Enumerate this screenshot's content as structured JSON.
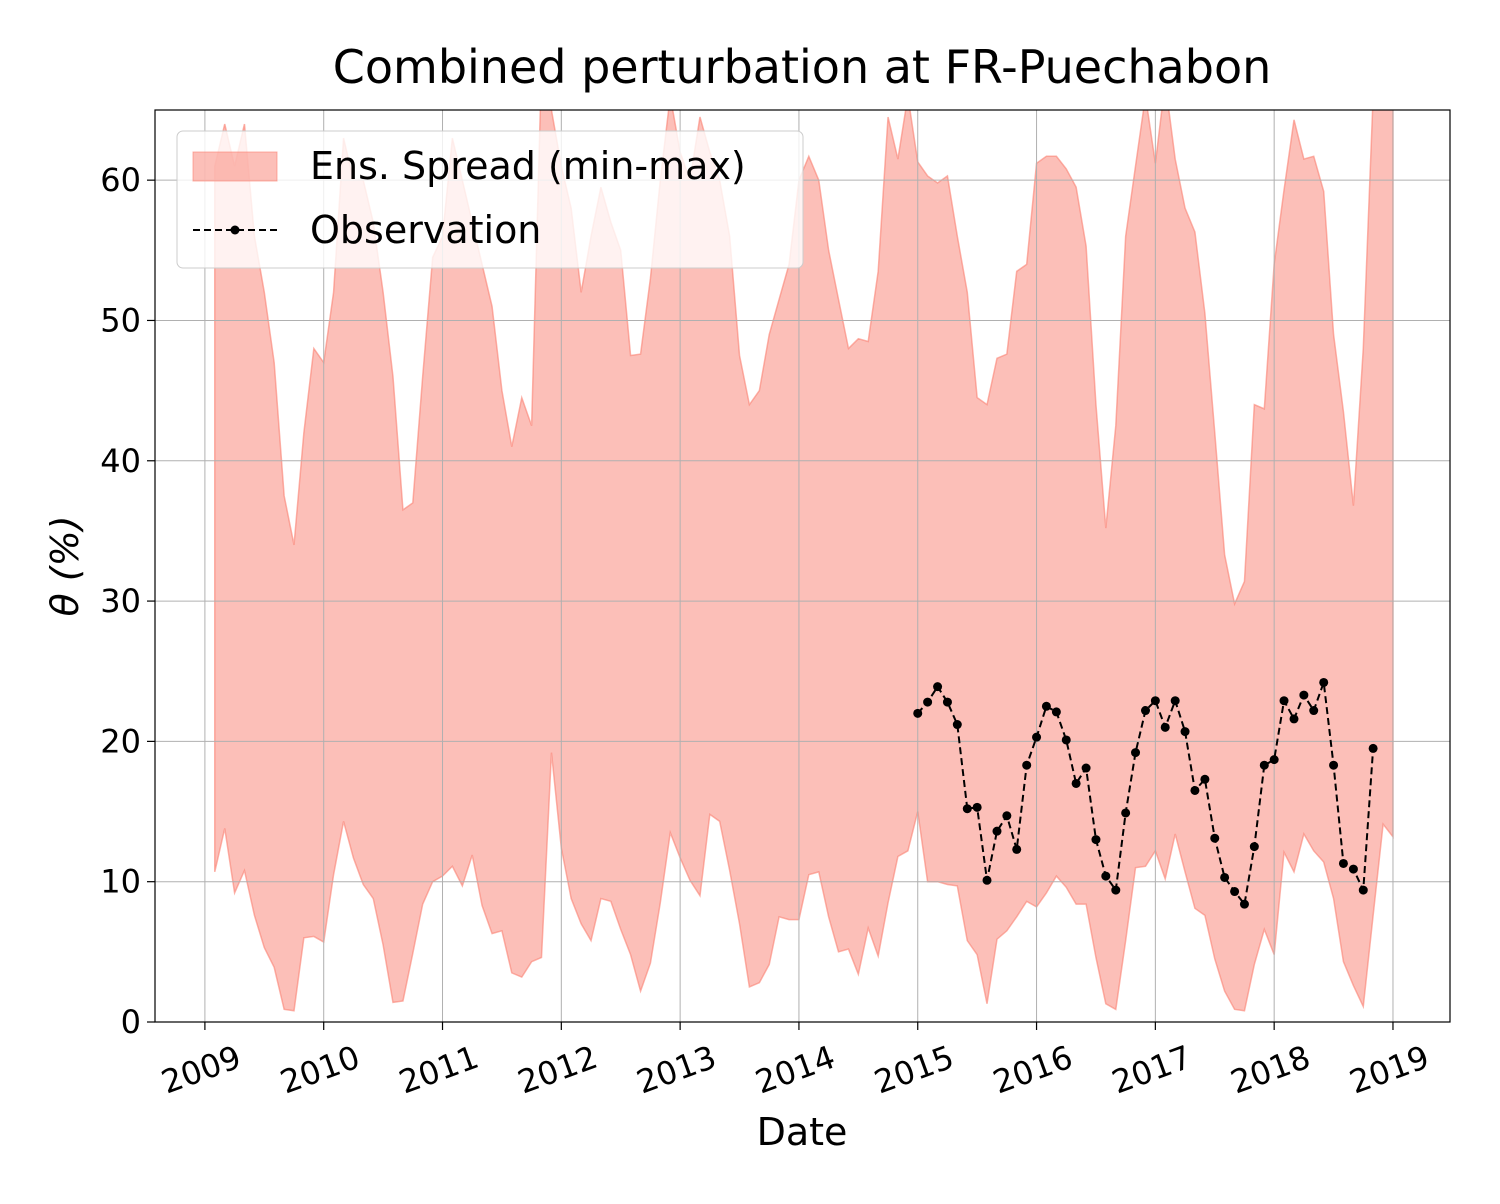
{
  "chart_data": {
    "type": "band-line",
    "title": "Combined perturbation at FR-Puechabon",
    "x_label": "Date",
    "y_label": "θ  (%)",
    "xlim": [
      2008.58,
      2019.48
    ],
    "ylim": [
      0,
      65
    ],
    "xticks": [
      2009,
      2010,
      2011,
      2012,
      2013,
      2014,
      2015,
      2016,
      2017,
      2018,
      2019
    ],
    "yticks": [
      0,
      10,
      20,
      30,
      40,
      50,
      60
    ],
    "grid": true,
    "legend": "upper left",
    "series": [
      {
        "name": "Ens. Spread (min-max)",
        "color": "#fa8072",
        "x": [
          2009.083,
          2009.167,
          2009.25,
          2009.333,
          2009.417,
          2009.5,
          2009.583,
          2009.667,
          2009.75,
          2009.833,
          2009.917,
          2010,
          2010.083,
          2010.167,
          2010.25,
          2010.333,
          2010.417,
          2010.5,
          2010.583,
          2010.667,
          2010.75,
          2010.833,
          2010.917,
          2011,
          2011.083,
          2011.167,
          2011.25,
          2011.333,
          2011.417,
          2011.5,
          2011.583,
          2011.667,
          2011.75,
          2011.833,
          2011.917,
          2012,
          2012.083,
          2012.167,
          2012.25,
          2012.333,
          2012.417,
          2012.5,
          2012.583,
          2012.667,
          2012.75,
          2012.833,
          2012.917,
          2013,
          2013.083,
          2013.167,
          2013.25,
          2013.333,
          2013.417,
          2013.5,
          2013.583,
          2013.667,
          2013.75,
          2013.833,
          2013.917,
          2014,
          2014.083,
          2014.167,
          2014.25,
          2014.333,
          2014.417,
          2014.5,
          2014.583,
          2014.667,
          2014.75,
          2014.833,
          2014.917,
          2015,
          2015.083,
          2015.167,
          2015.25,
          2015.333,
          2015.417,
          2015.5,
          2015.583,
          2015.667,
          2015.75,
          2015.833,
          2015.917,
          2016,
          2016.083,
          2016.167,
          2016.25,
          2016.333,
          2016.417,
          2016.5,
          2016.583,
          2016.667,
          2016.75,
          2016.833,
          2016.917,
          2017,
          2017.083,
          2017.167,
          2017.25,
          2017.333,
          2017.417,
          2017.5,
          2017.583,
          2017.667,
          2017.75,
          2017.833,
          2017.917,
          2018,
          2018.083,
          2018.167,
          2018.25,
          2018.333,
          2018.417,
          2018.5,
          2018.583,
          2018.667,
          2018.75,
          2018.833,
          2018.917,
          2019
        ],
        "upper": [
          61,
          64,
          61,
          64,
          56,
          52,
          47,
          37.5,
          34,
          42,
          48,
          47,
          52,
          63,
          60,
          60,
          57,
          52,
          46,
          36.5,
          37,
          46,
          54.5,
          56,
          63,
          60,
          57,
          54,
          51,
          45,
          41,
          44.5,
          42.5,
          68,
          65,
          61,
          58,
          52,
          56,
          59.5,
          57,
          55,
          47.5,
          47.6,
          53,
          60,
          66,
          62,
          60,
          64.5,
          62,
          60,
          56,
          47.5,
          44,
          45,
          49,
          51.5,
          54,
          60,
          61.7,
          60,
          55,
          51.5,
          48,
          48.7,
          48.5,
          53.5,
          64.5,
          61.5,
          66,
          61.3,
          60.3,
          59.8,
          60.3,
          56,
          52,
          44.5,
          44,
          47.3,
          47.6,
          53.5,
          54,
          61.2,
          61.7,
          61.7,
          60.8,
          59.5,
          55.3,
          44,
          35.2,
          42.5,
          56,
          61,
          66,
          61.2,
          67,
          61.5,
          58,
          56.3,
          50.5,
          42,
          33.3,
          29.8,
          31.4,
          44,
          43.7,
          54,
          59.3,
          64.3,
          61.5,
          61.7,
          59.2,
          49,
          43.5,
          36.8,
          48,
          66,
          68,
          68
        ],
        "lower": [
          10.7,
          13.8,
          9.2,
          10.8,
          7.6,
          5.3,
          3.9,
          0.9,
          0.8,
          6,
          6.1,
          5.7,
          10.5,
          14.3,
          11.7,
          9.8,
          8.8,
          5.5,
          1.4,
          1.5,
          4.9,
          8.4,
          10,
          10.4,
          11.1,
          9.7,
          11.9,
          8.3,
          6.3,
          6.5,
          3.5,
          3.2,
          4.3,
          4.6,
          19.2,
          12.4,
          8.8,
          7,
          5.8,
          8.8,
          8.6,
          6.6,
          4.8,
          2.2,
          4.2,
          8.5,
          13.5,
          11.7,
          10.1,
          9,
          14.8,
          14.3,
          10.8,
          7,
          2.5,
          2.8,
          4.1,
          7.5,
          7.3,
          7.3,
          10.5,
          10.7,
          7.5,
          5,
          5.2,
          3.4,
          6.7,
          4.7,
          8.5,
          11.8,
          12.2,
          15,
          10,
          10,
          9.8,
          9.7,
          5.8,
          4.8,
          1.3,
          5.9,
          6.5,
          7.5,
          8.6,
          8.2,
          9.2,
          10.4,
          9.6,
          8.4,
          8.4,
          4.6,
          1.3,
          0.9,
          5.8,
          11,
          11.1,
          12.2,
          10.2,
          13.4,
          10.7,
          8.1,
          7.6,
          4.5,
          2.2,
          0.9,
          0.8,
          4.1,
          6.6,
          4.8,
          12.1,
          10.7,
          13.4,
          12.2,
          11.4,
          8.8,
          4.3,
          2.6,
          1.1,
          7.6,
          14.1,
          13.2
        ]
      },
      {
        "name": "Observation",
        "color": "#000000",
        "x": [
          2015,
          2015.083,
          2015.167,
          2015.25,
          2015.333,
          2015.417,
          2015.5,
          2015.583,
          2015.667,
          2015.75,
          2015.833,
          2015.917,
          2016,
          2016.083,
          2016.167,
          2016.25,
          2016.333,
          2016.417,
          2016.5,
          2016.583,
          2016.667,
          2016.75,
          2016.833,
          2016.917,
          2017,
          2017.083,
          2017.167,
          2017.25,
          2017.333,
          2017.417,
          2017.5,
          2017.583,
          2017.667,
          2017.75,
          2017.833,
          2017.917,
          2018,
          2018.083,
          2018.167,
          2018.25,
          2018.333,
          2018.417,
          2018.5,
          2018.583,
          2018.667,
          2018.75,
          2018.833
        ],
        "values": [
          22,
          22.8,
          23.9,
          22.8,
          21.2,
          15.2,
          15.3,
          10.1,
          13.6,
          14.7,
          12.3,
          18.3,
          20.3,
          22.5,
          22.1,
          20.1,
          17,
          18.1,
          13,
          10.4,
          9.4,
          14.9,
          19.2,
          22.2,
          22.9,
          21,
          22.9,
          20.7,
          16.5,
          17.3,
          13.1,
          10.3,
          9.3,
          8.4,
          12.5,
          18.3,
          18.7,
          22.9,
          21.6,
          23.3,
          22.2,
          24.2,
          18.3,
          11.3,
          10.9,
          9.4,
          19.5
        ]
      }
    ]
  }
}
